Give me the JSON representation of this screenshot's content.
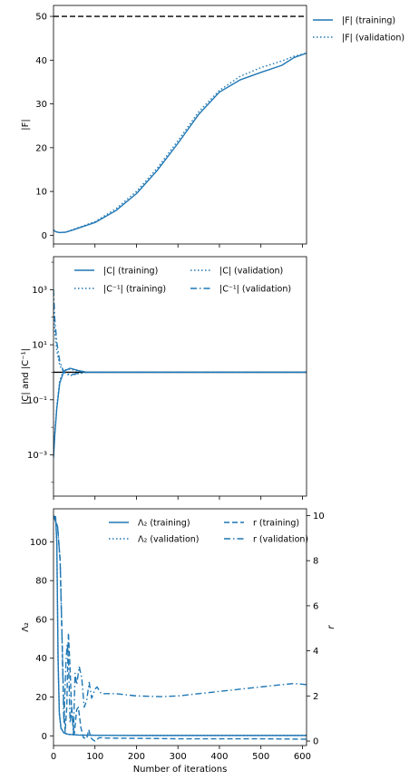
{
  "style": {
    "series_color": "#1f77b4",
    "reference_color": "#000000",
    "background": "#ffffff"
  },
  "chart_data": [
    {
      "type": "line",
      "ylabel": "|F|",
      "xlim": [
        0,
        610
      ],
      "ylim": [
        -2,
        52.5
      ],
      "yticks": [
        0,
        10,
        20,
        30,
        40,
        50
      ],
      "reference_line": {
        "y": 50,
        "style": "dashed"
      },
      "legend": {
        "placement": "outside-right",
        "columns": 1
      },
      "series": [
        {
          "name": "|F| (training)",
          "style": "solid",
          "x": [
            0,
            5,
            15,
            30,
            50,
            100,
            150,
            200,
            250,
            300,
            350,
            400,
            450,
            500,
            550,
            580,
            610
          ],
          "y": [
            1.2,
            0.8,
            0.6,
            0.7,
            1.3,
            2.9,
            5.6,
            9.5,
            14.8,
            21.0,
            27.6,
            32.7,
            35.5,
            37.2,
            38.8,
            40.6,
            41.6
          ]
        },
        {
          "name": "|F| (validation)",
          "style": "dotted",
          "x": [
            0,
            5,
            15,
            30,
            50,
            100,
            150,
            200,
            250,
            300,
            350,
            400,
            450,
            500,
            550,
            580,
            610
          ],
          "y": [
            1.2,
            0.8,
            0.6,
            0.7,
            1.4,
            3.1,
            6.0,
            10.0,
            15.3,
            21.6,
            28.2,
            33.1,
            36.3,
            38.3,
            39.8,
            40.9,
            41.6
          ]
        }
      ]
    },
    {
      "type": "line",
      "ylabel": "|C| and |C⁻¹|",
      "yscale": "log",
      "xlim": [
        0,
        610
      ],
      "ylim_log10": [
        -4.5,
        4.2
      ],
      "yticks_log10": [
        -3,
        -1,
        1,
        3
      ],
      "ytick_labels": [
        "10⁻³",
        "10⁻¹",
        "10¹",
        "10³"
      ],
      "reference_line": {
        "y": 1,
        "style": "solid"
      },
      "legend": {
        "placement": "upper center",
        "columns": 2
      },
      "series": [
        {
          "name": "|C| (training)",
          "style": "solid",
          "x": [
            0,
            3,
            8,
            15,
            25,
            40,
            60,
            80,
            120,
            610
          ],
          "y": [
            0.0008,
            0.005,
            0.05,
            0.4,
            1.1,
            1.4,
            1.15,
            1.0,
            1.0,
            1.0
          ]
        },
        {
          "name": "|C⁻¹| (training)",
          "style": "dotted",
          "x": [
            0,
            3,
            8,
            15,
            25,
            40,
            60,
            80,
            120,
            610
          ],
          "y": [
            200,
            30,
            6,
            1.8,
            1.0,
            0.75,
            0.9,
            1.0,
            1.0,
            1.0
          ]
        },
        {
          "name": "|C| (validation)",
          "style": "dotted",
          "x": [
            0,
            3,
            8,
            15,
            25,
            40,
            60,
            80,
            120,
            610
          ],
          "y": [
            0.001,
            0.006,
            0.06,
            0.5,
            1.2,
            1.3,
            1.1,
            1.0,
            1.0,
            1.0
          ]
        },
        {
          "name": "|C⁻¹| (validation)",
          "style": "dashdot",
          "x": [
            0,
            3,
            8,
            15,
            25,
            40,
            60,
            80,
            120,
            610
          ],
          "y": [
            1000,
            90,
            12,
            2.5,
            1.0,
            0.8,
            0.92,
            1.0,
            1.0,
            1.0
          ]
        }
      ]
    },
    {
      "type": "line",
      "ylabel": "Λ₂",
      "ylabel_right": "r",
      "xlabel": "Number of iterations",
      "xlim": [
        0,
        610
      ],
      "xticks": [
        0,
        100,
        200,
        300,
        400,
        500,
        600
      ],
      "ylim": [
        -5,
        117
      ],
      "yticks": [
        0,
        20,
        40,
        60,
        80,
        100
      ],
      "ylim_right": [
        -0.2,
        10.3
      ],
      "yticks_right": [
        0,
        2,
        4,
        6,
        8,
        10
      ],
      "legend": {
        "placement": "upper right",
        "columns": 2
      },
      "series": [
        {
          "name": "Λ₂ (training)",
          "style": "solid",
          "axis": "left",
          "x": [
            0,
            5,
            8,
            11,
            14,
            18,
            25,
            35,
            60,
            100,
            200,
            610
          ],
          "y": [
            113,
            113,
            100,
            40,
            12,
            4,
            1.5,
            0.8,
            0.4,
            0.3,
            0.2,
            0.2
          ]
        },
        {
          "name": "Λ₂ (validation)",
          "style": "dotted",
          "axis": "left",
          "x": [
            0,
            5,
            8,
            11,
            14,
            18,
            25,
            35,
            60,
            100,
            200,
            610
          ],
          "y": [
            113,
            113,
            98,
            38,
            11,
            3.8,
            1.4,
            0.7,
            0.4,
            0.3,
            0.2,
            0.2
          ]
        },
        {
          "name": "r (training)",
          "style": "dashed",
          "axis": "right",
          "x": [
            0,
            10,
            16,
            20,
            24,
            28,
            32,
            36,
            40,
            44,
            50,
            56,
            60,
            66,
            72,
            80,
            85,
            90,
            95,
            100,
            110,
            130,
            200,
            300,
            400,
            500,
            610
          ],
          "y": [
            10,
            9.5,
            8.0,
            5.0,
            2.0,
            0.4,
            1.5,
            4.8,
            3.2,
            1.2,
            0.3,
            1.4,
            1.5,
            0.6,
            0.15,
            0.1,
            0.5,
            0.15,
            0.05,
            0.0,
            0.15,
            0.13,
            0.12,
            0.1,
            0.1,
            0.1,
            0.08
          ]
        },
        {
          "name": "r (validation)",
          "style": "dashdot",
          "axis": "right",
          "x": [
            0,
            10,
            16,
            20,
            25,
            30,
            33,
            36,
            40,
            44,
            48,
            52,
            56,
            62,
            68,
            74,
            80,
            86,
            92,
            100,
            105,
            115,
            150,
            200,
            260,
            300,
            350,
            400,
            450,
            500,
            550,
            580,
            610
          ],
          "y": [
            10,
            9.5,
            8.0,
            5.0,
            0.8,
            3.5,
            4.3,
            3.7,
            0.8,
            1.5,
            0.3,
            3.0,
            2.5,
            3.3,
            2.8,
            1.5,
            1.8,
            2.6,
            1.9,
            2.3,
            2.4,
            2.1,
            2.1,
            2.0,
            1.97,
            2.0,
            2.1,
            2.2,
            2.3,
            2.4,
            2.5,
            2.55,
            2.5
          ]
        }
      ]
    }
  ]
}
